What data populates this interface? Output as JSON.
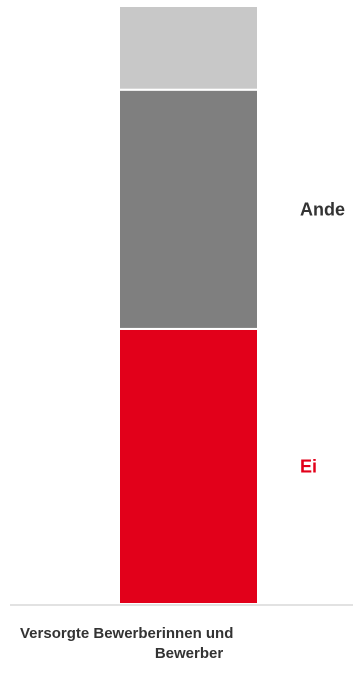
{
  "chart_data": {
    "type": "bar",
    "stacked": true,
    "categories": [
      "Versorgte Bewerberinnen und Bewerber"
    ],
    "category_label_lines": [
      "Versorgte Bewerberinnen und",
      "Bewerber"
    ],
    "series": [
      {
        "values": [
          46
        ],
        "color": "#e2001a",
        "label": "Ei",
        "label_color": "#e2001a"
      },
      {
        "values": [
          40
        ],
        "color": "#7f7f7f",
        "label": "Ande",
        "label_color": "#333333"
      },
      {
        "values": [
          14
        ],
        "color": "#c8c8c8",
        "label": "",
        "label_color": "#333333"
      }
    ],
    "ylim": [
      0,
      100
    ],
    "grid": false,
    "axis_line_color": "#d9d9d9"
  }
}
